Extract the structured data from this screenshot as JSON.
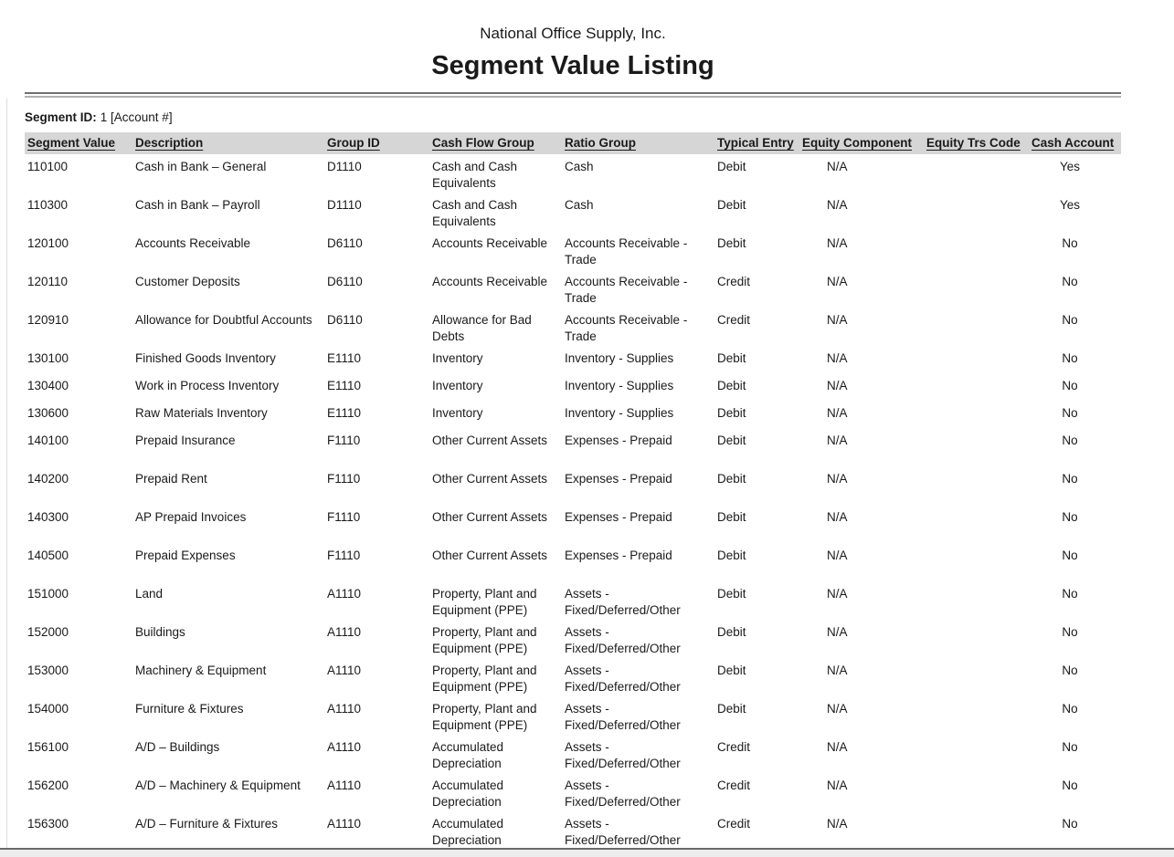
{
  "report": {
    "company": "National Office Supply, Inc.",
    "title": "Segment Value Listing",
    "segment_id_label": "Segment ID:",
    "segment_id_value": "1 [Account #]"
  },
  "table": {
    "columns": [
      "Segment Value",
      "Description",
      "Group ID",
      "Cash Flow Group",
      "Ratio Group",
      "Typical Entry",
      "Equity Component",
      "Equity Trs Code",
      "Cash Account"
    ],
    "rows": [
      [
        "110100",
        "Cash in Bank – General",
        "D1110",
        "Cash and Cash Equivalents",
        "Cash",
        "Debit",
        "N/A",
        "",
        "Yes"
      ],
      [
        "110300",
        "Cash in Bank – Payroll",
        "D1110",
        "Cash and Cash Equivalents",
        "Cash",
        "Debit",
        "N/A",
        "",
        "Yes"
      ],
      [
        "120100",
        "Accounts Receivable",
        "D6110",
        "Accounts Receivable",
        "Accounts Receivable - Trade",
        "Debit",
        "N/A",
        "",
        "No"
      ],
      [
        "120110",
        "Customer Deposits",
        "D6110",
        "Accounts Receivable",
        "Accounts Receivable - Trade",
        "Credit",
        "N/A",
        "",
        "No"
      ],
      [
        "120910",
        "Allowance for Doubtful Accounts",
        "D6110",
        "Allowance for Bad Debts",
        "Accounts Receivable - Trade",
        "Credit",
        "N/A",
        "",
        "No"
      ],
      [
        "130100",
        "Finished Goods Inventory",
        "E1110",
        "Inventory",
        "Inventory - Supplies",
        "Debit",
        "N/A",
        "",
        "No"
      ],
      [
        "130400",
        "Work in Process Inventory",
        "E1110",
        "Inventory",
        "Inventory - Supplies",
        "Debit",
        "N/A",
        "",
        "No"
      ],
      [
        "130600",
        "Raw Materials Inventory",
        "E1110",
        "Inventory",
        "Inventory - Supplies",
        "Debit",
        "N/A",
        "",
        "No"
      ],
      [
        "140100",
        "Prepaid Insurance",
        "F1110",
        "Other Current Assets",
        "Expenses - Prepaid",
        "Debit",
        "N/A",
        "",
        "No"
      ],
      [
        "140200",
        "Prepaid Rent",
        "F1110",
        "Other Current Assets",
        "Expenses - Prepaid",
        "Debit",
        "N/A",
        "",
        "No"
      ],
      [
        "140300",
        "AP Prepaid Invoices",
        "F1110",
        "Other Current Assets",
        "Expenses - Prepaid",
        "Debit",
        "N/A",
        "",
        "No"
      ],
      [
        "140500",
        "Prepaid Expenses",
        "F1110",
        "Other Current Assets",
        "Expenses - Prepaid",
        "Debit",
        "N/A",
        "",
        "No"
      ],
      [
        "151000",
        "Land",
        "A1110",
        "Property, Plant and Equipment (PPE)",
        "Assets - Fixed/Deferred/Other",
        "Debit",
        "N/A",
        "",
        "No"
      ],
      [
        "152000",
        "Buildings",
        "A1110",
        "Property, Plant and Equipment (PPE)",
        "Assets - Fixed/Deferred/Other",
        "Debit",
        "N/A",
        "",
        "No"
      ],
      [
        "153000",
        "Machinery & Equipment",
        "A1110",
        "Property, Plant and Equipment (PPE)",
        "Assets - Fixed/Deferred/Other",
        "Debit",
        "N/A",
        "",
        "No"
      ],
      [
        "154000",
        "Furniture & Fixtures",
        "A1110",
        "Property, Plant and Equipment (PPE)",
        "Assets - Fixed/Deferred/Other",
        "Debit",
        "N/A",
        "",
        "No"
      ],
      [
        "156100",
        "A/D – Buildings",
        "A1110",
        "Accumulated Depreciation",
        "Assets - Fixed/Deferred/Other",
        "Credit",
        "N/A",
        "",
        "No"
      ],
      [
        "156200",
        "A/D – Machinery & Equipment",
        "A1110",
        "Accumulated Depreciation",
        "Assets - Fixed/Deferred/Other",
        "Credit",
        "N/A",
        "",
        "No"
      ],
      [
        "156300",
        "A/D – Furniture & Fixtures",
        "A1110",
        "Accumulated Depreciation",
        "Assets - Fixed/Deferred/Other",
        "Credit",
        "N/A",
        "",
        "No"
      ]
    ]
  },
  "colors": {
    "header_row_bg": "#d6d6d6",
    "rule_dark": "#707070",
    "rule_light": "#b0b0b0",
    "bottom_rule": "#6a6a6a",
    "text": "#1a1a1a",
    "page_bg": "#ffffff",
    "outside_strip": "#ededed"
  }
}
